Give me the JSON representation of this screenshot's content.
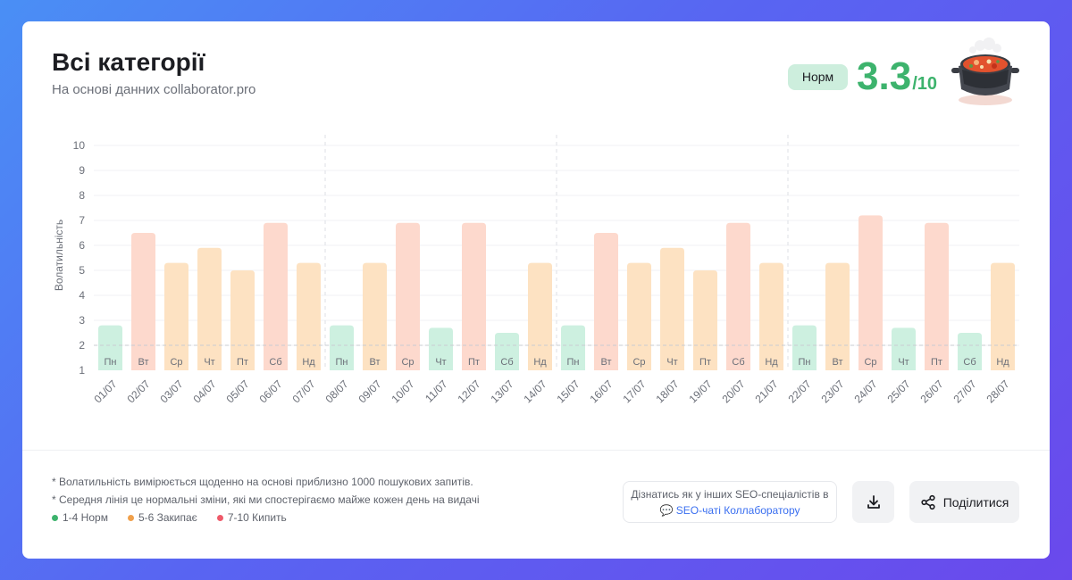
{
  "header": {
    "title": "Всі категорії",
    "subtitle": "На основі данних collaborator.pro",
    "status_label": "Норм",
    "score": "3.3",
    "score_max": "/10"
  },
  "colors": {
    "norm": "#cdf0e0",
    "boil_start": "#fde2c2",
    "boil": "#fdd9cd",
    "accent_green": "#3db36d",
    "dot_orange": "#f0a04b",
    "dot_red": "#ef5a6a"
  },
  "chart_data": {
    "type": "bar",
    "ylabel": "Волатильність",
    "xlabel": "",
    "ylim": [
      1,
      10
    ],
    "yticks": [
      1,
      2,
      3,
      4,
      5,
      6,
      7,
      8,
      9,
      10
    ],
    "reference_line": 2,
    "categories": [
      "01/07",
      "02/07",
      "03/07",
      "04/07",
      "05/07",
      "06/07",
      "07/07",
      "08/07",
      "09/07",
      "10/07",
      "11/07",
      "12/07",
      "13/07",
      "14/07",
      "15/07",
      "16/07",
      "17/07",
      "18/07",
      "19/07",
      "20/07",
      "21/07",
      "22/07",
      "23/07",
      "24/07",
      "25/07",
      "26/07",
      "27/07",
      "28/07"
    ],
    "day_labels": [
      "Пн",
      "Вт",
      "Ср",
      "Чт",
      "Пт",
      "Сб",
      "Нд",
      "Пн",
      "Вт",
      "Ср",
      "Чт",
      "Пт",
      "Сб",
      "Нд",
      "Пн",
      "Вт",
      "Ср",
      "Чт",
      "Пт",
      "Сб",
      "Нд",
      "Пн",
      "Вт",
      "Ср",
      "Чт",
      "Пт",
      "Сб",
      "Нд"
    ],
    "values": [
      2.8,
      6.5,
      5.3,
      5.9,
      5.0,
      6.9,
      5.3,
      2.8,
      5.3,
      6.9,
      2.7,
      6.9,
      2.5,
      5.3,
      2.8,
      6.5,
      5.3,
      5.9,
      5.0,
      6.9,
      5.3,
      2.8,
      5.3,
      7.2,
      2.7,
      6.9,
      2.5,
      5.3
    ],
    "week_separators_after": [
      7,
      14,
      21
    ]
  },
  "footer": {
    "note1": "* Волатильність вимірюється щоденно на основі приблизно 1000 пошукових запитів.",
    "note2": "* Середня лінія це нормальні зміни, які ми спостерігаємо майже кожен день на видачі",
    "legend": [
      {
        "label": "1-4 Норм",
        "color": "#3db36d"
      },
      {
        "label": "5-6 Закипає",
        "color": "#f0a04b"
      },
      {
        "label": "7-10 Кипить",
        "color": "#ef5a6a"
      }
    ],
    "learn_line1": "Дізнатись як у інших SEO-спеціалістів в",
    "learn_link": "💬 SEO-чаті Коллаборатору",
    "share_label": "Поділитися"
  }
}
